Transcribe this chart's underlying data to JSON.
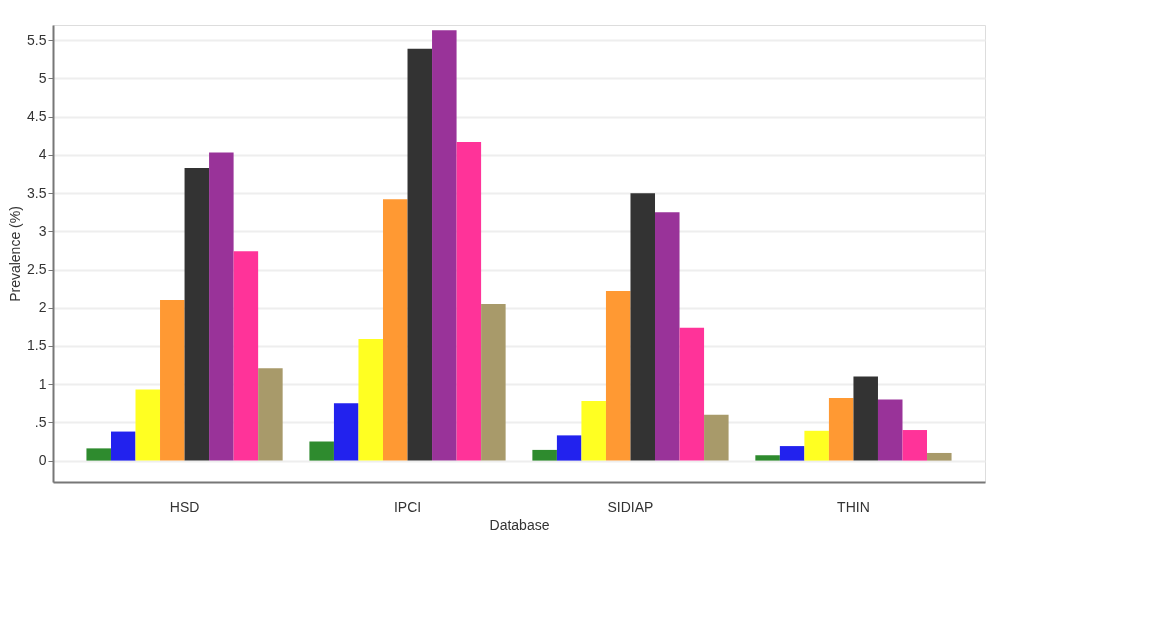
{
  "chart_data": {
    "type": "bar",
    "xlabel": "Database",
    "ylabel": "Prevalence (%)",
    "categories": [
      "HSD",
      "IPCI",
      "SIDIAP",
      "THIN"
    ],
    "series": [
      {
        "color": "#2e8b2e",
        "values": [
          0.16,
          0.25,
          0.14,
          0.07
        ]
      },
      {
        "color": "#2222ee",
        "values": [
          0.38,
          0.75,
          0.33,
          0.19
        ]
      },
      {
        "color": "#ffff22",
        "values": [
          0.93,
          1.59,
          0.78,
          0.39
        ]
      },
      {
        "color": "#ff9933",
        "values": [
          2.1,
          3.42,
          2.22,
          0.82
        ]
      },
      {
        "color": "#333333",
        "values": [
          3.83,
          5.39,
          3.5,
          1.1
        ]
      },
      {
        "color": "#993399",
        "values": [
          4.03,
          5.63,
          3.25,
          0.8
        ]
      },
      {
        "color": "#ff3399",
        "values": [
          2.74,
          4.17,
          1.74,
          0.4
        ]
      },
      {
        "color": "#a89a6a",
        "values": [
          1.21,
          2.05,
          0.6,
          0.1
        ]
      }
    ],
    "ylim": [
      -0.28,
      5.7
    ],
    "yticks": [
      0,
      {
        "value": 0.5,
        "label": ".5"
      },
      1,
      1.5,
      2,
      2.5,
      3,
      3.5,
      4,
      4.5,
      5,
      5.5
    ],
    "grid": "y",
    "legend": false
  }
}
